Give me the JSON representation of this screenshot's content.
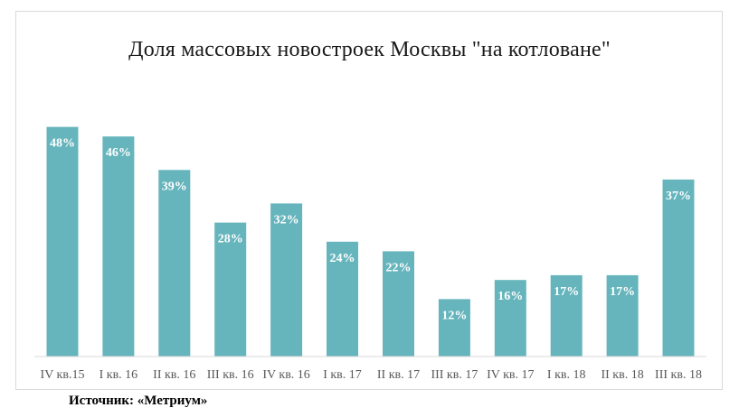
{
  "chart_data": {
    "type": "bar",
    "title": "Доля массовых  новостроек Москвы \"на котловане\"",
    "categories": [
      "IV кв.15",
      "I кв. 16",
      "II кв. 16",
      "III кв. 16",
      "IV кв. 16",
      "I кв. 17",
      "II кв. 17",
      "III кв. 17",
      "IV кв. 17",
      "I кв. 18",
      "II кв. 18",
      "III кв. 18"
    ],
    "values": [
      48,
      46,
      39,
      28,
      32,
      24,
      22,
      12,
      16,
      17,
      17,
      37
    ],
    "data_labels": [
      "48%",
      "46%",
      "39%",
      "28%",
      "32%",
      "24%",
      "22%",
      "12%",
      "16%",
      "17%",
      "17%",
      "37%"
    ],
    "value_unit": "%",
    "xlabel": "",
    "ylabel": "",
    "ylim": [
      0,
      56
    ],
    "grid": false,
    "legend": "none",
    "bar_color": "#66b5bd",
    "label_color": "#ffffff"
  },
  "source": "Источник: «Метриум»"
}
